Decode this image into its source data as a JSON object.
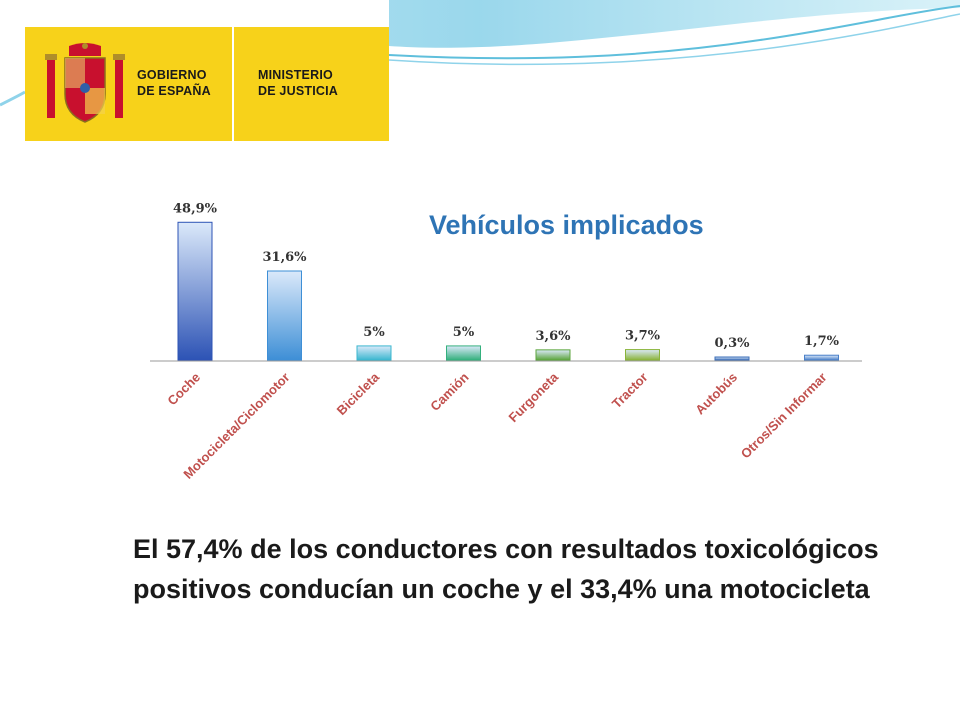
{
  "header": {
    "gov_label": "GOBIERNO\nDE ESPAÑA",
    "ministry_label": "MINISTERIO\nDE JUSTICIA",
    "logo_color": "#f7d21a"
  },
  "chart_data": {
    "type": "bar",
    "title": "Vehículos implicados",
    "categories": [
      "Coche",
      "Motocicleta/Ciclomotor",
      "Bicicleta",
      "Camión",
      "Furgoneta",
      "Tractor",
      "Autobús",
      "Otros/Sin Informar"
    ],
    "values": [
      48.9,
      31.6,
      5,
      5,
      3.6,
      3.7,
      0.3,
      1.7
    ],
    "value_labels": [
      "48,9%",
      "31,6%",
      "5%",
      "5%",
      "3,6%",
      "3,7%",
      "0,3%",
      "1,7%"
    ],
    "bar_colors": [
      "#2d53b5",
      "#3e8fd6",
      "#3bb7cf",
      "#34b07d",
      "#5ca53d",
      "#8ab43a",
      "#3d6fb8",
      "#4a80c8"
    ],
    "category_label_color": "#c0504d",
    "ylim": [
      0,
      50
    ],
    "grid": false,
    "xlabel": "",
    "ylabel": ""
  },
  "footer": {
    "text": "El 57,4% de los conductores con resultados toxicológicos positivos conducían un coche y el 33,4% una motocicleta"
  }
}
